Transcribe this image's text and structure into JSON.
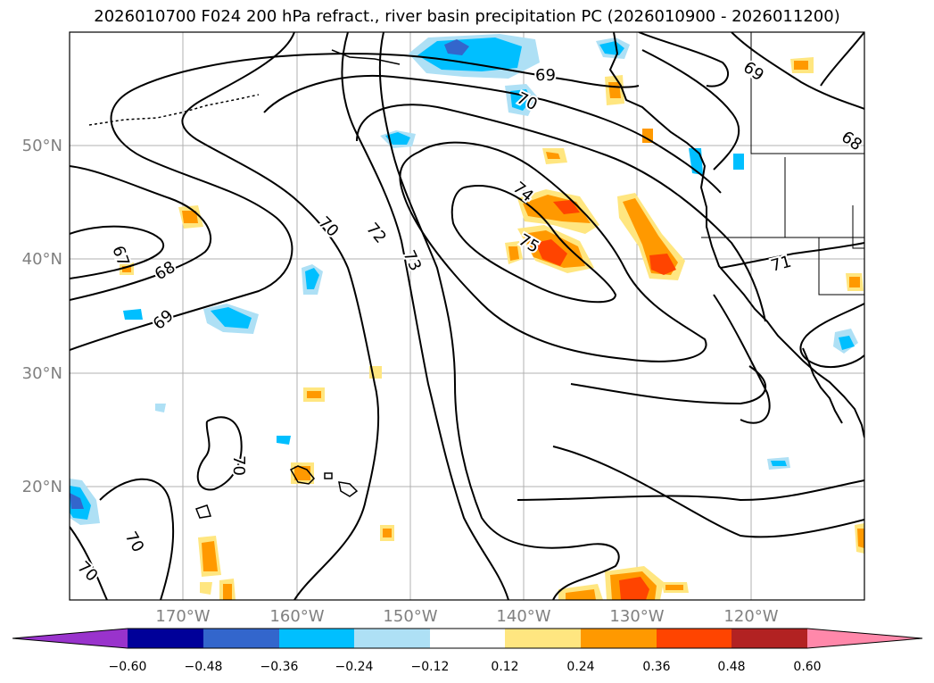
{
  "title": "2026010700 F024 200 hPa refract., river basin precipitation PC (2026010900 - 2026011200)",
  "map": {
    "lat_labels": [
      "50°N",
      "40°N",
      "30°N",
      "20°N"
    ],
    "lon_labels": [
      "170°W",
      "160°W",
      "150°W",
      "140°W",
      "130°W",
      "120°W"
    ],
    "contour_labels": [
      "67",
      "68",
      "69",
      "70",
      "70",
      "70",
      "70",
      "72",
      "73",
      "74",
      "75",
      "69",
      "70",
      "69",
      "68",
      "71"
    ]
  },
  "colorbar": {
    "colors": [
      "#9933cc",
      "#000099",
      "#3366cc",
      "#00bfff",
      "#aee0f5",
      "#ffffff",
      "#ffe680",
      "#ff9900",
      "#ff4400",
      "#b22222",
      "#ff88aa"
    ],
    "tick_labels": [
      "−0.60",
      "−0.48",
      "−0.36",
      "−0.24",
      "−0.12",
      "0.12",
      "0.24",
      "0.36",
      "0.48",
      "0.60"
    ]
  }
}
